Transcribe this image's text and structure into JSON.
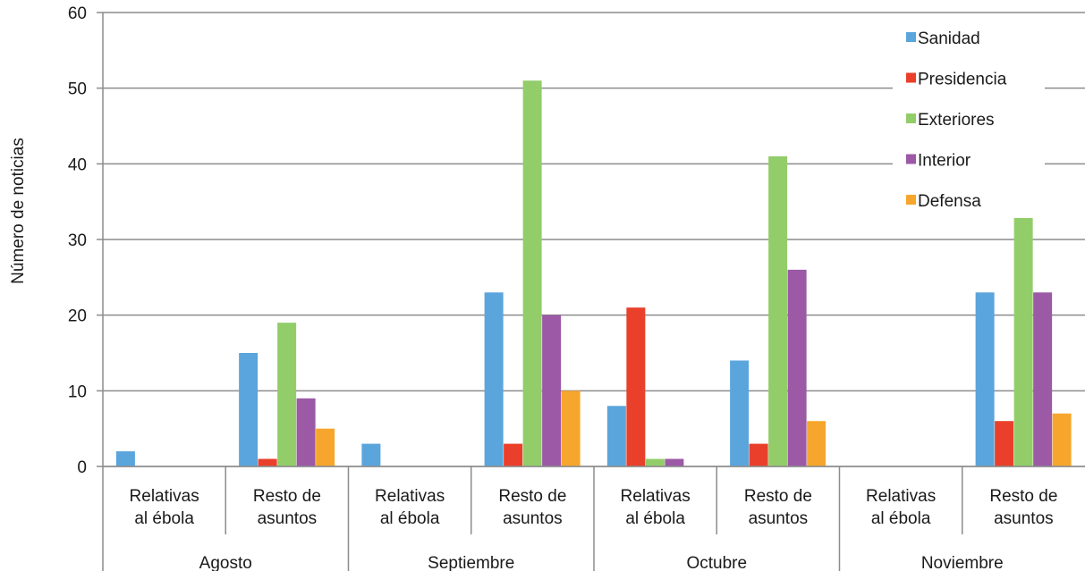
{
  "chart_data": {
    "type": "bar",
    "title": "",
    "xlabel": "",
    "ylabel": "Número de noticias",
    "ylim": [
      0,
      60
    ],
    "yticks": [
      0,
      10,
      20,
      30,
      40,
      50,
      60
    ],
    "grid": true,
    "legend_position": "top-right",
    "groups": [
      {
        "label": "Agosto",
        "categories": [
          [
            "Relativas",
            "al ébola"
          ],
          [
            "Resto de",
            "asuntos"
          ]
        ]
      },
      {
        "label": "Septiembre",
        "categories": [
          [
            "Relativas",
            "al ébola"
          ],
          [
            "Resto de",
            "asuntos"
          ]
        ]
      },
      {
        "label": "Octubre",
        "categories": [
          [
            "Relativas",
            "al ébola"
          ],
          [
            "Resto de",
            "asuntos"
          ]
        ]
      },
      {
        "label": "Noviembre",
        "categories": [
          [
            "Relativas",
            "al ébola"
          ],
          [
            "Resto de",
            "asuntos"
          ]
        ]
      }
    ],
    "series": [
      {
        "name": "Sanidad",
        "color": "#5aa5dc",
        "values": [
          2,
          15,
          3,
          23,
          8,
          14,
          0,
          23
        ]
      },
      {
        "name": "Presidencia",
        "color": "#ea3f2a",
        "values": [
          0,
          1,
          0,
          3,
          21,
          3,
          0,
          6
        ]
      },
      {
        "name": "Exteriores",
        "color": "#92cd6a",
        "values": [
          0,
          19,
          0,
          51,
          1,
          41,
          0,
          33
        ]
      },
      {
        "name": "Interior",
        "color": "#9b59a6",
        "values": [
          0,
          9,
          0,
          20,
          1,
          26,
          0,
          23
        ]
      },
      {
        "name": "Defensa",
        "color": "#f6a62c",
        "values": [
          0,
          5,
          0,
          10,
          0,
          6,
          0,
          7
        ]
      }
    ]
  }
}
